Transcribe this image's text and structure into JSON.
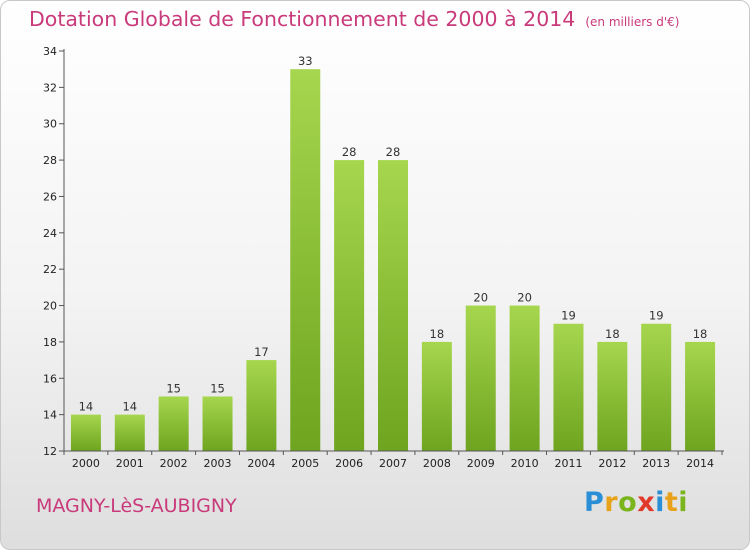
{
  "title": "Dotation Globale de Fonctionnement de 2000 à 2014",
  "unit_note": "(en milliers d'€)",
  "commune": "MAGNY-LèS-AUBIGNY",
  "logo": {
    "text": "Proxiti",
    "letter_colors": [
      "#2a8fd6",
      "#e8a21a",
      "#7ab51d",
      "#e23a2a",
      "#2a8fd6",
      "#e8a21a",
      "#7ab51d"
    ]
  },
  "colors": {
    "title": "#c93a7b",
    "bar_top": "#a6d64e",
    "bar_bottom": "#6ea41f"
  },
  "chart_data": {
    "type": "bar",
    "title": "Dotation Globale de Fonctionnement de 2000 à 2014",
    "xlabel": "",
    "ylabel": "",
    "categories": [
      "2000",
      "2001",
      "2002",
      "2003",
      "2004",
      "2005",
      "2006",
      "2007",
      "2008",
      "2009",
      "2010",
      "2011",
      "2012",
      "2013",
      "2014"
    ],
    "values": [
      14,
      14,
      15,
      15,
      17,
      33,
      28,
      28,
      18,
      20,
      20,
      19,
      18,
      19,
      18
    ],
    "ylim": [
      12,
      34
    ],
    "yticks": [
      12,
      14,
      16,
      18,
      20,
      22,
      24,
      26,
      28,
      30,
      32,
      34
    ],
    "grid": false,
    "legend": "none"
  }
}
